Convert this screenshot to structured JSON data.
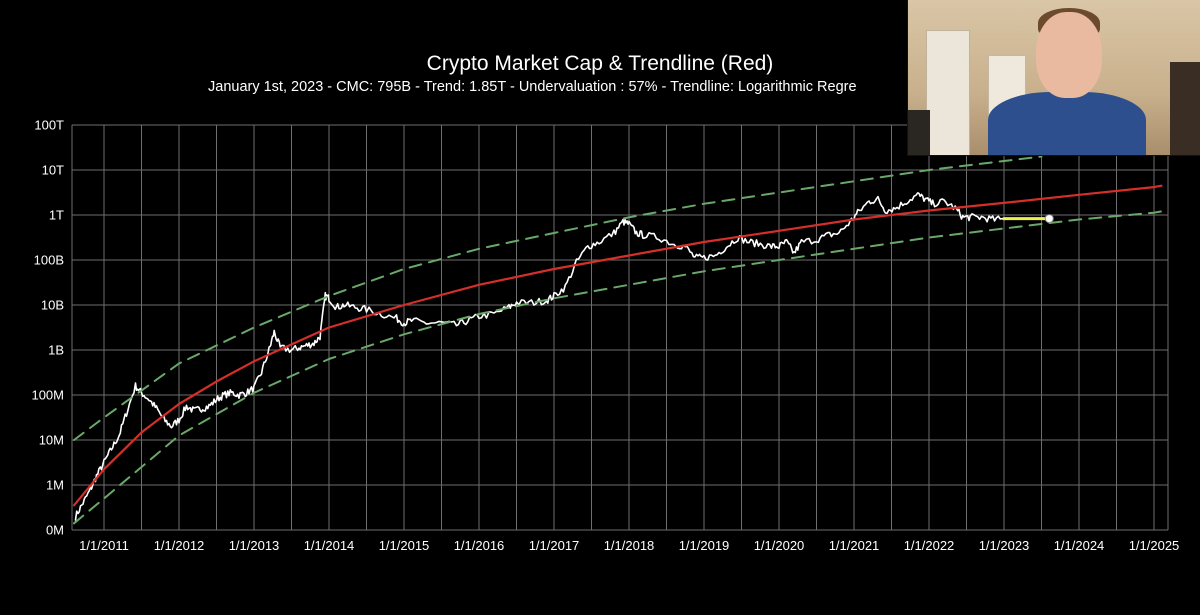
{
  "chart_data": {
    "type": "line",
    "title": "Crypto Market Cap & Trendline (Red)",
    "subtitle": "January 1st, 2023 - CMC:  795B - Trend: 1.85T - Undervaluation : 57% - Trendline: Logarithmic Regre",
    "y_scale": "log10",
    "ylim": [
      100000.0,
      100000000000000.0
    ],
    "y_ticks": [
      {
        "value": 100000,
        "label": "0M"
      },
      {
        "value": 1000000,
        "label": "1M"
      },
      {
        "value": 10000000,
        "label": "10M"
      },
      {
        "value": 100000000,
        "label": "100M"
      },
      {
        "value": 1000000000,
        "label": "1B"
      },
      {
        "value": 10000000000,
        "label": "10B"
      },
      {
        "value": 100000000000,
        "label": "100B"
      },
      {
        "value": 1000000000000,
        "label": "1T"
      },
      {
        "value": 10000000000000,
        "label": "10T"
      },
      {
        "value": 100000000000000,
        "label": "100T"
      }
    ],
    "x_unit": "year",
    "xlim": [
      2010.6,
      2025.1
    ],
    "x_ticks": [
      {
        "value": 2011,
        "label": "1/1/2011"
      },
      {
        "value": 2012,
        "label": "1/1/2012"
      },
      {
        "value": 2013,
        "label": "1/1/2013"
      },
      {
        "value": 2014,
        "label": "1/1/2014"
      },
      {
        "value": 2015,
        "label": "1/1/2015"
      },
      {
        "value": 2016,
        "label": "1/1/2016"
      },
      {
        "value": 2017,
        "label": "1/1/2017"
      },
      {
        "value": 2018,
        "label": "1/1/2018"
      },
      {
        "value": 2019,
        "label": "1/1/2019"
      },
      {
        "value": 2020,
        "label": "1/1/2020"
      },
      {
        "value": 2021,
        "label": "1/1/2021"
      },
      {
        "value": 2022,
        "label": "1/1/2022"
      },
      {
        "value": 2023,
        "label": "1/1/2023"
      },
      {
        "value": 2024,
        "label": "1/1/2024"
      },
      {
        "value": 2025,
        "label": "1/1/2025"
      }
    ],
    "grid": true,
    "series": [
      {
        "name": "Crypto Market Cap",
        "color": "#ffffff",
        "log10_points": [
          [
            2010.62,
            5.3
          ],
          [
            2010.72,
            5.6
          ],
          [
            2010.82,
            5.9
          ],
          [
            2010.9,
            6.2
          ],
          [
            2011.0,
            6.5
          ],
          [
            2011.1,
            6.8
          ],
          [
            2011.2,
            7.1
          ],
          [
            2011.3,
            7.6
          ],
          [
            2011.42,
            8.2
          ],
          [
            2011.5,
            8.05
          ],
          [
            2011.6,
            7.9
          ],
          [
            2011.7,
            7.7
          ],
          [
            2011.8,
            7.45
          ],
          [
            2011.9,
            7.3
          ],
          [
            2012.0,
            7.45
          ],
          [
            2012.1,
            7.75
          ],
          [
            2012.2,
            7.65
          ],
          [
            2012.3,
            7.7
          ],
          [
            2012.4,
            7.75
          ],
          [
            2012.5,
            7.9
          ],
          [
            2012.6,
            8.0
          ],
          [
            2012.7,
            8.05
          ],
          [
            2012.8,
            8.0
          ],
          [
            2012.9,
            8.05
          ],
          [
            2013.0,
            8.15
          ],
          [
            2013.1,
            8.5
          ],
          [
            2013.2,
            9.0
          ],
          [
            2013.27,
            9.4
          ],
          [
            2013.35,
            9.05
          ],
          [
            2013.5,
            9.0
          ],
          [
            2013.6,
            9.05
          ],
          [
            2013.7,
            9.1
          ],
          [
            2013.8,
            9.15
          ],
          [
            2013.88,
            9.3
          ],
          [
            2013.95,
            10.2
          ],
          [
            2014.0,
            10.15
          ],
          [
            2014.1,
            9.95
          ],
          [
            2014.2,
            10.0
          ],
          [
            2014.35,
            9.95
          ],
          [
            2014.5,
            9.9
          ],
          [
            2014.7,
            9.8
          ],
          [
            2014.9,
            9.7
          ],
          [
            2015.0,
            9.6
          ],
          [
            2015.1,
            9.65
          ],
          [
            2015.3,
            9.6
          ],
          [
            2015.5,
            9.6
          ],
          [
            2015.7,
            9.55
          ],
          [
            2015.85,
            9.65
          ],
          [
            2016.0,
            9.75
          ],
          [
            2016.2,
            9.8
          ],
          [
            2016.4,
            9.95
          ],
          [
            2016.5,
            10.05
          ],
          [
            2016.7,
            10.05
          ],
          [
            2016.9,
            10.1
          ],
          [
            2017.0,
            10.2
          ],
          [
            2017.15,
            10.4
          ],
          [
            2017.3,
            10.95
          ],
          [
            2017.45,
            11.3
          ],
          [
            2017.6,
            11.4
          ],
          [
            2017.8,
            11.6
          ],
          [
            2017.92,
            11.85
          ],
          [
            2018.0,
            11.8
          ],
          [
            2018.1,
            11.6
          ],
          [
            2018.2,
            11.55
          ],
          [
            2018.4,
            11.5
          ],
          [
            2018.6,
            11.35
          ],
          [
            2018.75,
            11.3
          ],
          [
            2018.88,
            11.05
          ],
          [
            2019.0,
            11.05
          ],
          [
            2019.15,
            11.1
          ],
          [
            2019.3,
            11.3
          ],
          [
            2019.45,
            11.5
          ],
          [
            2019.6,
            11.4
          ],
          [
            2019.75,
            11.35
          ],
          [
            2019.9,
            11.3
          ],
          [
            2020.0,
            11.3
          ],
          [
            2020.1,
            11.4
          ],
          [
            2020.2,
            11.15
          ],
          [
            2020.3,
            11.4
          ],
          [
            2020.5,
            11.45
          ],
          [
            2020.65,
            11.55
          ],
          [
            2020.8,
            11.6
          ],
          [
            2020.95,
            11.85
          ],
          [
            2021.05,
            12.05
          ],
          [
            2021.2,
            12.3
          ],
          [
            2021.32,
            12.35
          ],
          [
            2021.42,
            12.1
          ],
          [
            2021.55,
            12.15
          ],
          [
            2021.7,
            12.3
          ],
          [
            2021.85,
            12.45
          ],
          [
            2021.95,
            12.35
          ],
          [
            2022.05,
            12.25
          ],
          [
            2022.2,
            12.3
          ],
          [
            2022.35,
            12.15
          ],
          [
            2022.45,
            11.95
          ],
          [
            2022.55,
            11.95
          ],
          [
            2022.7,
            11.95
          ],
          [
            2022.85,
            11.9
          ],
          [
            2023.0,
            11.9
          ]
        ]
      },
      {
        "name": "Trendline (Red)",
        "color": "#d42f2a",
        "log10_points": [
          [
            2010.6,
            5.55
          ],
          [
            2011.0,
            6.35
          ],
          [
            2011.5,
            7.17
          ],
          [
            2012.0,
            7.8
          ],
          [
            2012.5,
            8.3
          ],
          [
            2013.0,
            8.75
          ],
          [
            2014.0,
            9.5
          ],
          [
            2015.0,
            10.0
          ],
          [
            2016.0,
            10.45
          ],
          [
            2017.0,
            10.8
          ],
          [
            2018.0,
            11.1
          ],
          [
            2019.0,
            11.4
          ],
          [
            2020.0,
            11.65
          ],
          [
            2021.0,
            11.9
          ],
          [
            2022.0,
            12.1
          ],
          [
            2023.0,
            12.27
          ],
          [
            2024.0,
            12.45
          ],
          [
            2025.0,
            12.62
          ],
          [
            2025.1,
            12.65
          ]
        ]
      },
      {
        "name": "Upper band",
        "color": "#6aa86a",
        "log10_points": [
          [
            2010.6,
            7.0
          ],
          [
            2011.0,
            7.5
          ],
          [
            2012.0,
            8.7
          ],
          [
            2013.0,
            9.5
          ],
          [
            2014.0,
            10.2
          ],
          [
            2015.0,
            10.8
          ],
          [
            2016.0,
            11.25
          ],
          [
            2017.0,
            11.6
          ],
          [
            2018.0,
            11.95
          ],
          [
            2019.0,
            12.25
          ],
          [
            2020.0,
            12.5
          ],
          [
            2021.0,
            12.75
          ],
          [
            2022.0,
            13.0
          ],
          [
            2023.0,
            13.2
          ],
          [
            2023.5,
            13.3
          ]
        ]
      },
      {
        "name": "Lower band",
        "color": "#6aa86a",
        "log10_points": [
          [
            2010.6,
            5.15
          ],
          [
            2011.0,
            5.7
          ],
          [
            2012.0,
            7.1
          ],
          [
            2013.0,
            8.05
          ],
          [
            2014.0,
            8.8
          ],
          [
            2015.0,
            9.35
          ],
          [
            2016.0,
            9.8
          ],
          [
            2017.0,
            10.15
          ],
          [
            2018.0,
            10.45
          ],
          [
            2019.0,
            10.75
          ],
          [
            2020.0,
            11.0
          ],
          [
            2021.0,
            11.25
          ],
          [
            2022.0,
            11.5
          ],
          [
            2023.0,
            11.7
          ],
          [
            2024.0,
            11.9
          ],
          [
            2025.0,
            12.05
          ],
          [
            2025.1,
            12.08
          ]
        ]
      },
      {
        "name": "Highlight (yellow)",
        "color": "#f0f050",
        "log10_points": [
          [
            2023.0,
            11.92
          ],
          [
            2023.55,
            11.92
          ]
        ]
      }
    ]
  },
  "webcam": {
    "label": "webcam overlay"
  }
}
